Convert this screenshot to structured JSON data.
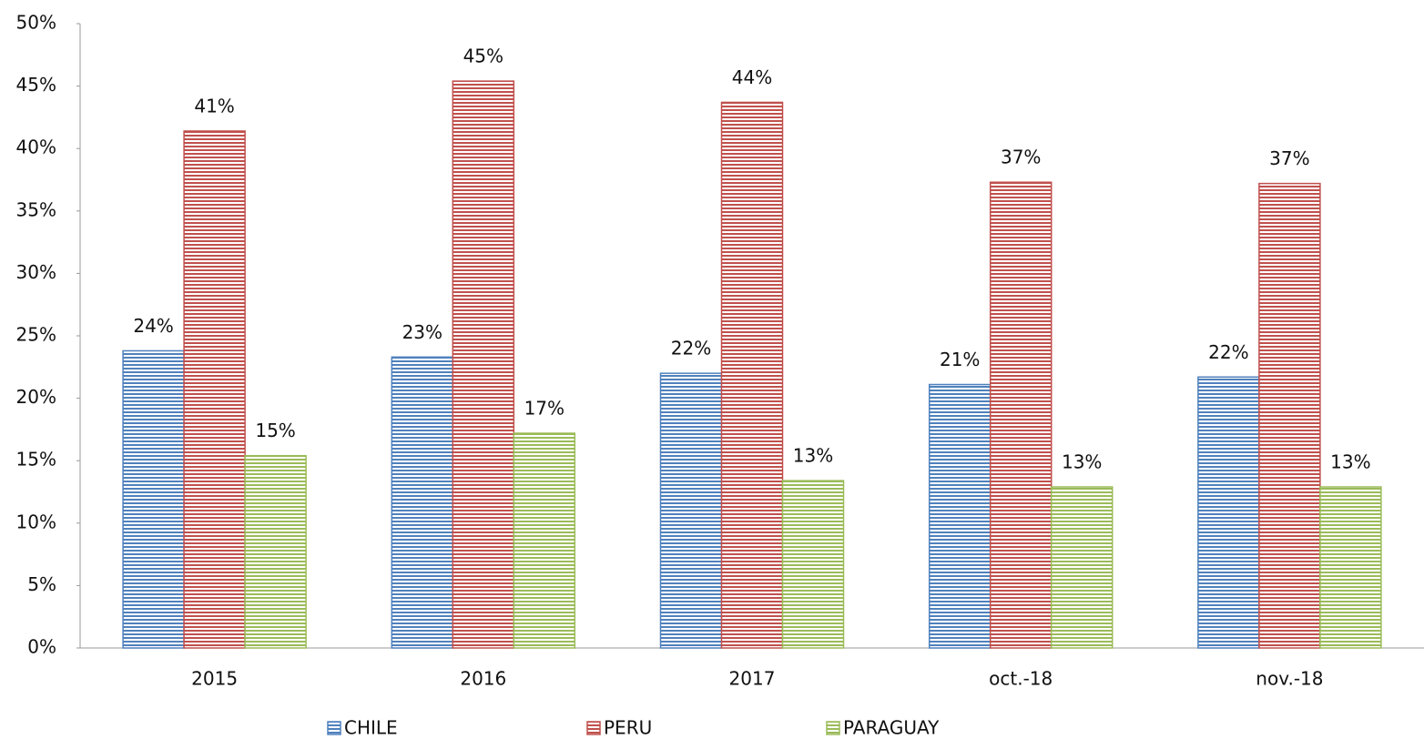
{
  "chart_data": {
    "type": "bar",
    "categories": [
      "2015",
      "2016",
      "2017",
      "oct.-18",
      "nov.-18"
    ],
    "series": [
      {
        "name": "CHILE",
        "color": "#4f81bd",
        "values": [
          23.8,
          23.3,
          22.0,
          21.1,
          21.7
        ],
        "value_labels": [
          "24%",
          "23%",
          "22%",
          "21%",
          "22%"
        ]
      },
      {
        "name": "PERU",
        "color": "#c0504d",
        "values": [
          41.4,
          45.4,
          43.7,
          37.3,
          37.2
        ],
        "value_labels": [
          "41%",
          "45%",
          "44%",
          "37%",
          "37%"
        ]
      },
      {
        "name": "PARAGUAY",
        "color": "#9bbb59",
        "values": [
          15.4,
          17.2,
          13.4,
          12.9,
          12.9
        ],
        "value_labels": [
          "15%",
          "17%",
          "13%",
          "13%",
          "13%"
        ]
      }
    ],
    "ylim": [
      0,
      50
    ],
    "yticks": [
      {
        "value": 0,
        "label": "0%"
      },
      {
        "value": 5,
        "label": "5%"
      },
      {
        "value": 10,
        "label": "10%"
      },
      {
        "value": 15,
        "label": "15%"
      },
      {
        "value": 20,
        "label": "20%"
      },
      {
        "value": 25,
        "label": "25%"
      },
      {
        "value": 30,
        "label": "30%"
      },
      {
        "value": 35,
        "label": "35%"
      },
      {
        "value": 40,
        "label": "40%"
      },
      {
        "value": 45,
        "label": "45%"
      },
      {
        "value": 50,
        "label": "50%"
      }
    ],
    "grid": false,
    "legend": "bottom"
  }
}
